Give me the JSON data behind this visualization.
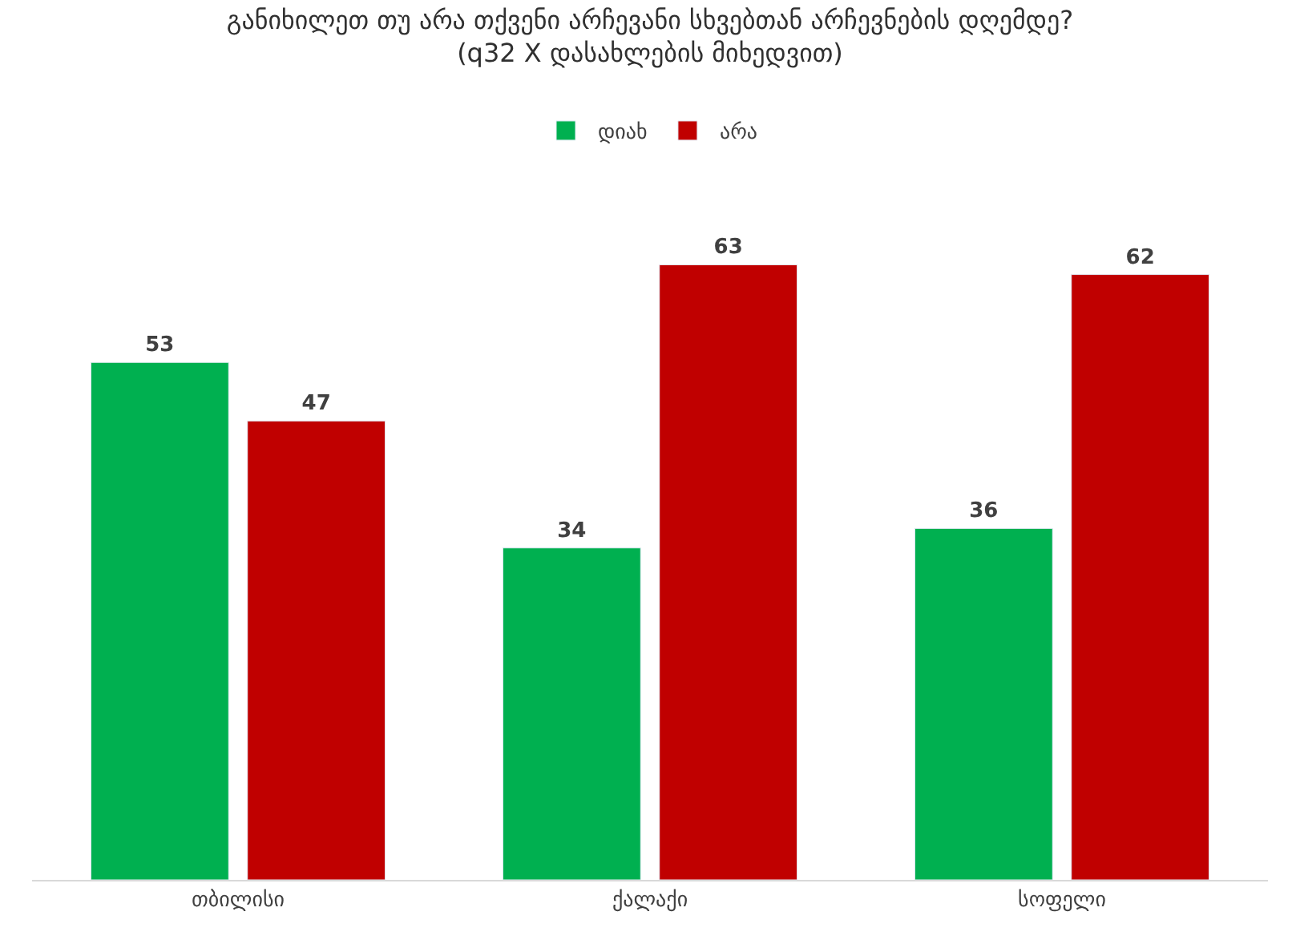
{
  "chart_data": {
    "type": "bar",
    "title": "განიხილეთ თუ არა თქვენი არჩევანი სხვებთან არჩევნების დღემდე? (q32 X დასახლების მიხედვით)",
    "categories": [
      "თბილისი",
      "ქალაქი",
      "სოფელი"
    ],
    "series": [
      {
        "name": "დიახ",
        "color": "#00b050",
        "values": [
          53,
          34,
          36
        ]
      },
      {
        "name": "არა",
        "color": "#c00000",
        "values": [
          47,
          63,
          62
        ]
      }
    ],
    "data_labels": true,
    "legend": "top"
  }
}
